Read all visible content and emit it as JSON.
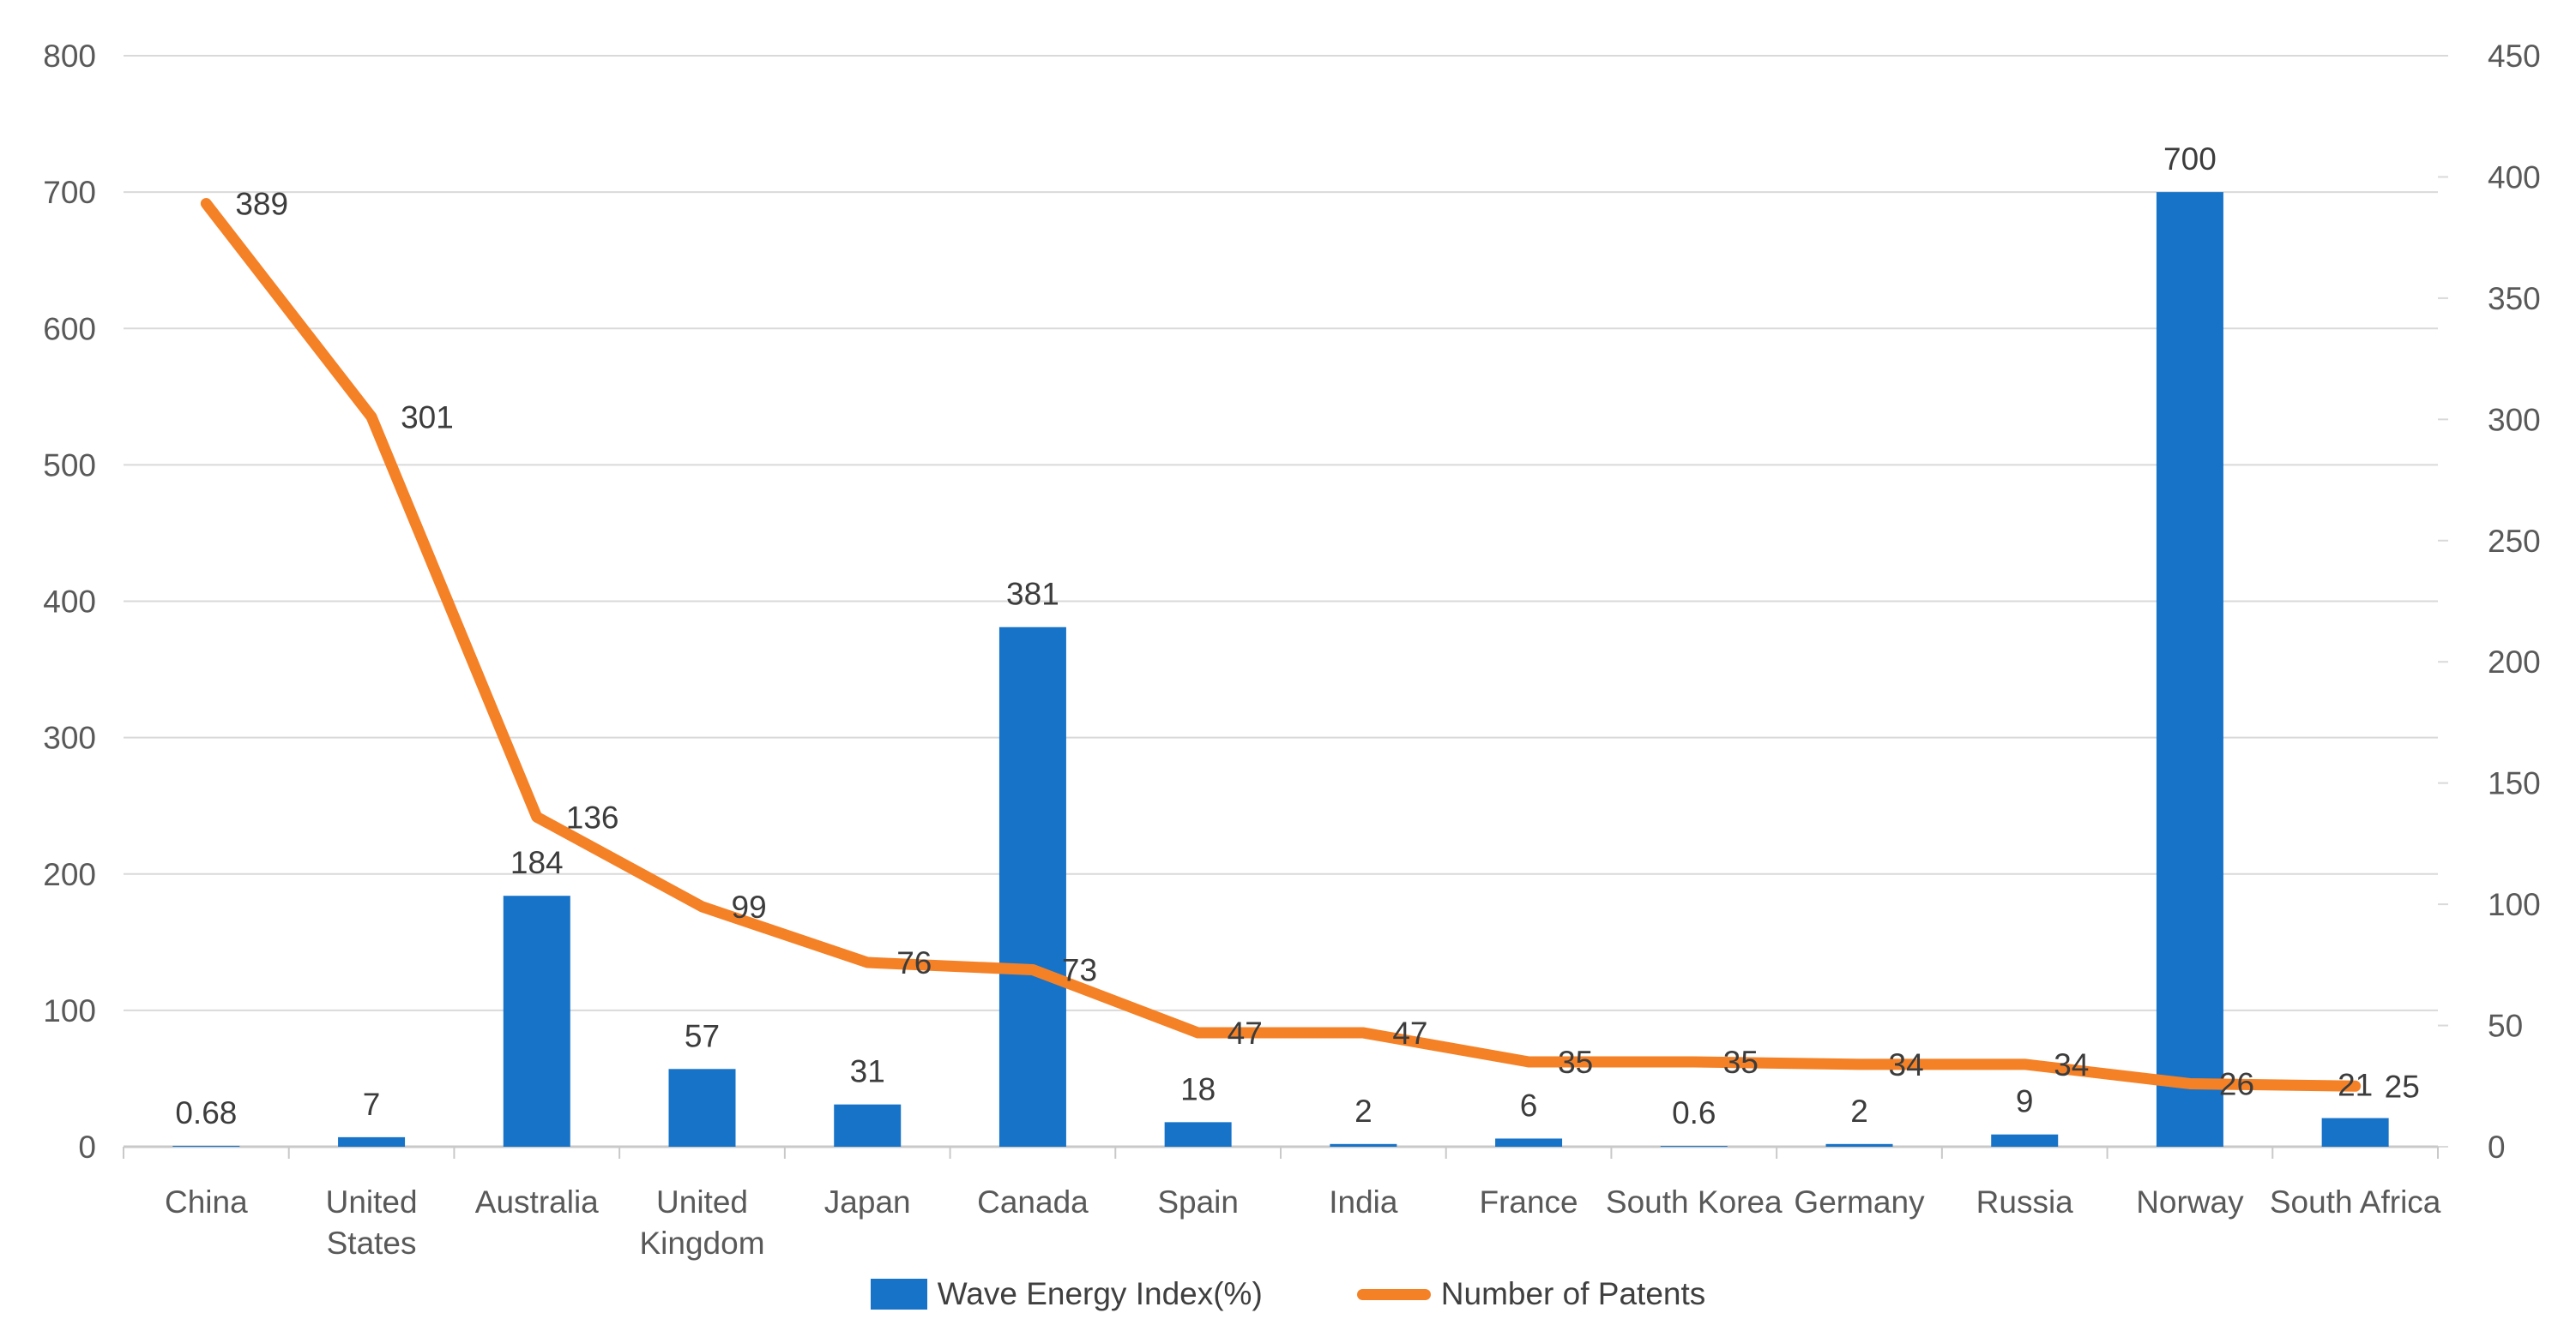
{
  "chart_data": {
    "type": "combo-bar-line",
    "categories": [
      "China",
      "United States",
      "Australia",
      "United Kingdom",
      "Japan",
      "Canada",
      "Spain",
      "India",
      "France",
      "South Korea",
      "Germany",
      "Russia",
      "Norway",
      "South Africa"
    ],
    "categories_wrapped": [
      [
        "China"
      ],
      [
        "United",
        "States"
      ],
      [
        "Australia"
      ],
      [
        "United",
        "Kingdom"
      ],
      [
        "Japan"
      ],
      [
        "Canada"
      ],
      [
        "Spain"
      ],
      [
        "India"
      ],
      [
        "France"
      ],
      [
        "South Korea"
      ],
      [
        "Germany"
      ],
      [
        "Russia"
      ],
      [
        "Norway"
      ],
      [
        "South Africa"
      ]
    ],
    "series": [
      {
        "name": "Wave Energy Index(%)",
        "type": "bar",
        "axis": "left",
        "color": "#1773c8",
        "values": [
          0.68,
          7,
          184,
          57,
          31,
          381,
          18,
          2,
          6,
          0.6,
          2,
          9,
          700,
          21
        ],
        "labels": [
          "0.68",
          "7",
          "184",
          "57",
          "31",
          "381",
          "18",
          "2",
          "6",
          "0.6",
          "2",
          "9",
          "700",
          "21"
        ]
      },
      {
        "name": "Number of Patents",
        "type": "line",
        "axis": "right",
        "color": "#f58127",
        "values": [
          389,
          301,
          136,
          99,
          76,
          73,
          47,
          47,
          35,
          35,
          34,
          34,
          26,
          25
        ],
        "labels": [
          "389",
          "301",
          "136",
          "99",
          "76",
          "73",
          "47",
          "47",
          "35",
          "35",
          "34",
          "34",
          "26",
          "25"
        ]
      }
    ],
    "left_axis": {
      "min": 0,
      "max": 800,
      "step": 100,
      "ticks": [
        "0",
        "100",
        "200",
        "300",
        "400",
        "500",
        "600",
        "700",
        "800"
      ]
    },
    "right_axis": {
      "min": 0,
      "max": 450,
      "step": 50,
      "ticks": [
        "0",
        "50",
        "100",
        "150",
        "200",
        "250",
        "300",
        "350",
        "400",
        "450"
      ]
    },
    "title": "",
    "xlabel": "",
    "ylabel": "",
    "grid": true,
    "legend_position": "bottom"
  },
  "legend": {
    "items": [
      {
        "label": "Wave Energy Index(%)",
        "marker": "rect",
        "color": "#1773c8"
      },
      {
        "label": "Number of Patents",
        "marker": "line",
        "color": "#f58127"
      }
    ]
  },
  "colors": {
    "bar": "#1773c8",
    "line": "#f58127",
    "gridline": "#d9d9d9",
    "axis_line": "#c9c9c9",
    "tick_label": "#595959",
    "data_label": "#3c3c3c",
    "background": "#ffffff"
  }
}
